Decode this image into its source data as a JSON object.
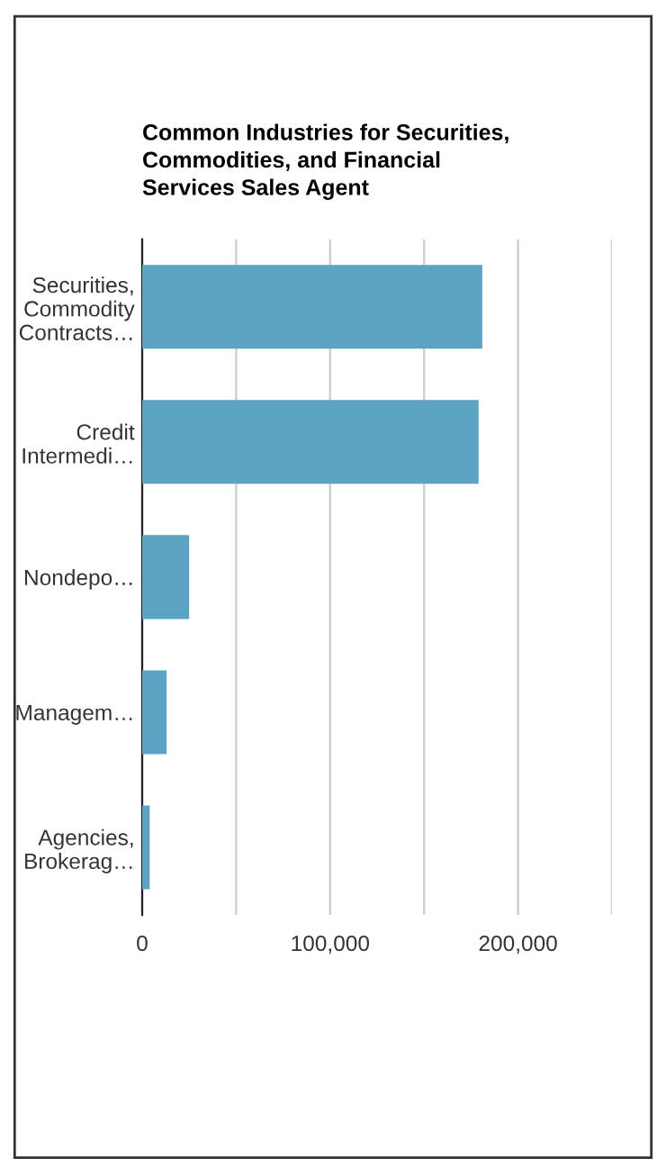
{
  "chart_data": {
    "type": "bar",
    "orientation": "horizontal",
    "title": "Common Industries for Securities,\nCommodities, and Financial\nServices Sales Agent",
    "categories": [
      "Securities,\nCommodity\nContracts…",
      "Credit\nIntermedi…",
      "Nondepo…",
      "Managem…",
      "Agencies,\nBrokerag…"
    ],
    "values": [
      181000,
      179000,
      25000,
      13000,
      4000
    ],
    "color": "#5ba3c2",
    "xlim": [
      0,
      250000
    ],
    "xticks": [
      0,
      {
        "value": 50000,
        "label": null
      },
      {
        "value": 100000,
        "label": "100,000"
      },
      {
        "value": 150000,
        "label": null
      },
      {
        "value": 200000,
        "label": "200,000"
      },
      {
        "value": 250000,
        "label": null
      }
    ],
    "grid": "x",
    "legend": false
  }
}
